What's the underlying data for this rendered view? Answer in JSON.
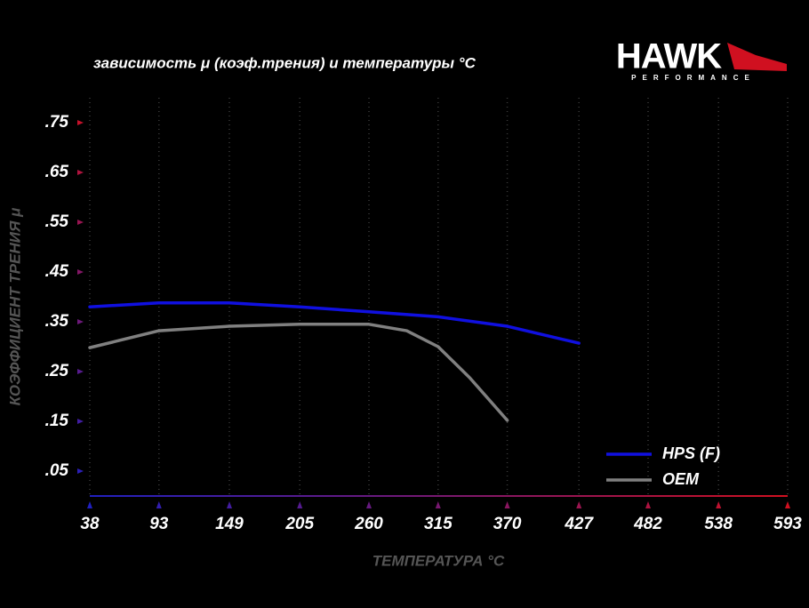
{
  "chart_data": {
    "type": "line",
    "title": "зависимость μ (коэф.трения) и температуры °C",
    "x_label": "ТЕМПЕРАТУРА °C",
    "y_label": "КОЭФФИЦИЕНТ ТРЕНИЯ μ",
    "xlim": [
      38,
      593
    ],
    "xticks": [
      38,
      93,
      149,
      205,
      260,
      315,
      370,
      427,
      482,
      538,
      593
    ],
    "ylim": [
      0,
      0.8
    ],
    "yticks": [
      {
        "value": 0.05,
        "label": ".05"
      },
      {
        "value": 0.15,
        "label": ".15"
      },
      {
        "value": 0.25,
        "label": ".25"
      },
      {
        "value": 0.35,
        "label": ".35"
      },
      {
        "value": 0.45,
        "label": ".45"
      },
      {
        "value": 0.55,
        "label": ".55"
      },
      {
        "value": 0.65,
        "label": ".65"
      },
      {
        "value": 0.75,
        "label": ".75"
      }
    ],
    "grid": true,
    "legend": "lower right",
    "series": [
      {
        "name": "HPS (F)",
        "color": "#1010e0",
        "x": [
          38,
          93,
          149,
          205,
          260,
          315,
          370,
          427
        ],
        "values": [
          0.38,
          0.388,
          0.388,
          0.38,
          0.37,
          0.36,
          0.341,
          0.307
        ]
      },
      {
        "name": "OEM",
        "color": "#808080",
        "x": [
          38,
          93,
          149,
          205,
          260,
          290,
          315,
          340,
          370
        ],
        "values": [
          0.298,
          0.332,
          0.341,
          0.345,
          0.345,
          0.332,
          0.3,
          0.238,
          0.152
        ]
      }
    ]
  },
  "logo": {
    "name": "HAWK",
    "tagline": "PERFORMANCE"
  }
}
